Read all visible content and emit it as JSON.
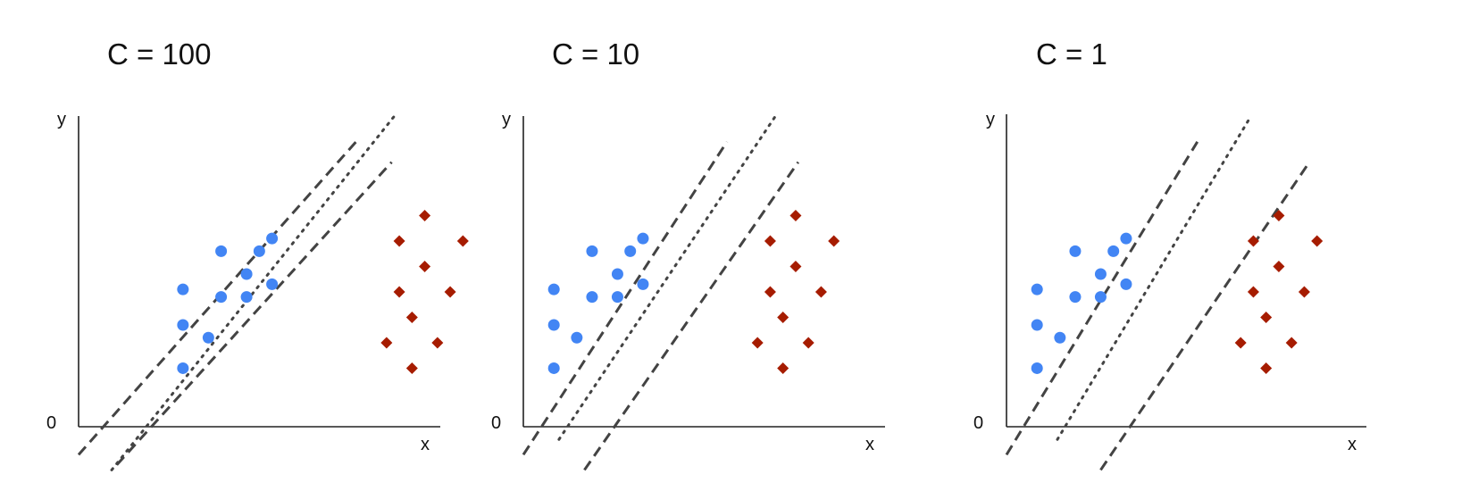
{
  "panels": [
    {
      "title": "C = 100",
      "axis": {
        "x_label": "x",
        "y_label": "y",
        "origin_label": "0"
      },
      "class_a_points": [
        [
          2.05,
          2.7
        ],
        [
          2.05,
          2.0
        ],
        [
          2.05,
          1.15
        ],
        [
          2.55,
          1.75
        ],
        [
          2.8,
          3.45
        ],
        [
          2.8,
          2.55
        ],
        [
          3.3,
          2.55
        ],
        [
          3.3,
          3.0
        ],
        [
          3.55,
          3.45
        ],
        [
          3.8,
          3.7
        ],
        [
          3.8,
          2.8
        ]
      ],
      "class_b_points": [
        [
          6.8,
          4.15
        ],
        [
          6.3,
          3.65
        ],
        [
          7.55,
          3.65
        ],
        [
          6.8,
          3.15
        ],
        [
          6.3,
          2.65
        ],
        [
          7.3,
          2.65
        ],
        [
          6.55,
          2.15
        ],
        [
          6.05,
          1.65
        ],
        [
          7.05,
          1.65
        ],
        [
          6.55,
          1.15
        ]
      ],
      "boundaries": [
        {
          "kind": "margin",
          "style": "dashed",
          "p1": [
            0.0,
            -0.55
          ],
          "p2": [
            5.45,
            5.6
          ]
        },
        {
          "kind": "hyperplane",
          "style": "dotted",
          "p1": [
            0.65,
            -0.85
          ],
          "p2": [
            6.2,
            6.1
          ]
        },
        {
          "kind": "margin",
          "style": "dashed",
          "p1": [
            0.75,
            -0.75
          ],
          "p2": [
            6.15,
            5.2
          ]
        }
      ]
    },
    {
      "title": "C = 10",
      "axis": {
        "x_label": "x",
        "y_label": "y",
        "origin_label": "0"
      },
      "class_a_points": [
        [
          0.6,
          2.7
        ],
        [
          0.6,
          2.0
        ],
        [
          0.6,
          1.15
        ],
        [
          1.05,
          1.75
        ],
        [
          1.35,
          3.45
        ],
        [
          1.35,
          2.55
        ],
        [
          1.85,
          2.55
        ],
        [
          1.85,
          3.0
        ],
        [
          2.1,
          3.45
        ],
        [
          2.35,
          3.7
        ],
        [
          2.35,
          2.8
        ]
      ],
      "class_b_points": [
        [
          5.35,
          4.15
        ],
        [
          4.85,
          3.65
        ],
        [
          6.1,
          3.65
        ],
        [
          5.35,
          3.15
        ],
        [
          4.85,
          2.65
        ],
        [
          5.85,
          2.65
        ],
        [
          5.1,
          2.15
        ],
        [
          4.6,
          1.65
        ],
        [
          5.6,
          1.65
        ],
        [
          5.1,
          1.15
        ]
      ],
      "boundaries": [
        {
          "kind": "margin",
          "style": "dashed",
          "p1": [
            0.0,
            -0.55
          ],
          "p2": [
            4.0,
            5.6
          ]
        },
        {
          "kind": "hyperplane",
          "style": "dotted",
          "p1": [
            0.7,
            -0.25
          ],
          "p2": [
            4.95,
            6.1
          ]
        },
        {
          "kind": "margin",
          "style": "dashed",
          "p1": [
            1.2,
            -0.85
          ],
          "p2": [
            5.4,
            5.2
          ]
        }
      ]
    },
    {
      "title": "C = 1",
      "axis": {
        "x_label": "x",
        "y_label": "y",
        "origin_label": "0"
      },
      "class_a_points": [
        [
          0.6,
          2.7
        ],
        [
          0.6,
          2.0
        ],
        [
          0.6,
          1.15
        ],
        [
          1.05,
          1.75
        ],
        [
          1.35,
          3.45
        ],
        [
          1.35,
          2.55
        ],
        [
          1.85,
          2.55
        ],
        [
          1.85,
          3.0
        ],
        [
          2.1,
          3.45
        ],
        [
          2.35,
          3.7
        ],
        [
          2.35,
          2.8
        ]
      ],
      "class_b_points": [
        [
          5.35,
          4.15
        ],
        [
          4.85,
          3.65
        ],
        [
          6.1,
          3.65
        ],
        [
          5.35,
          3.15
        ],
        [
          4.85,
          2.65
        ],
        [
          5.85,
          2.65
        ],
        [
          5.1,
          2.15
        ],
        [
          4.6,
          1.65
        ],
        [
          5.6,
          1.65
        ],
        [
          5.1,
          1.15
        ]
      ],
      "boundaries": [
        {
          "kind": "margin",
          "style": "dashed",
          "p1": [
            0.0,
            -0.55
          ],
          "p2": [
            3.75,
            5.6
          ]
        },
        {
          "kind": "hyperplane",
          "style": "dotted",
          "p1": [
            1.0,
            -0.25
          ],
          "p2": [
            4.8,
            6.1
          ]
        },
        {
          "kind": "margin",
          "style": "dashed",
          "p1": [
            1.85,
            -0.85
          ],
          "p2": [
            5.95,
            5.2
          ]
        }
      ]
    }
  ],
  "colors": {
    "class_a": "#4285f4",
    "class_b": "#a61c00",
    "line": "#434343",
    "axis": "#222222"
  },
  "marker_shapes": {
    "class_a": "circle",
    "class_b": "diamond"
  }
}
